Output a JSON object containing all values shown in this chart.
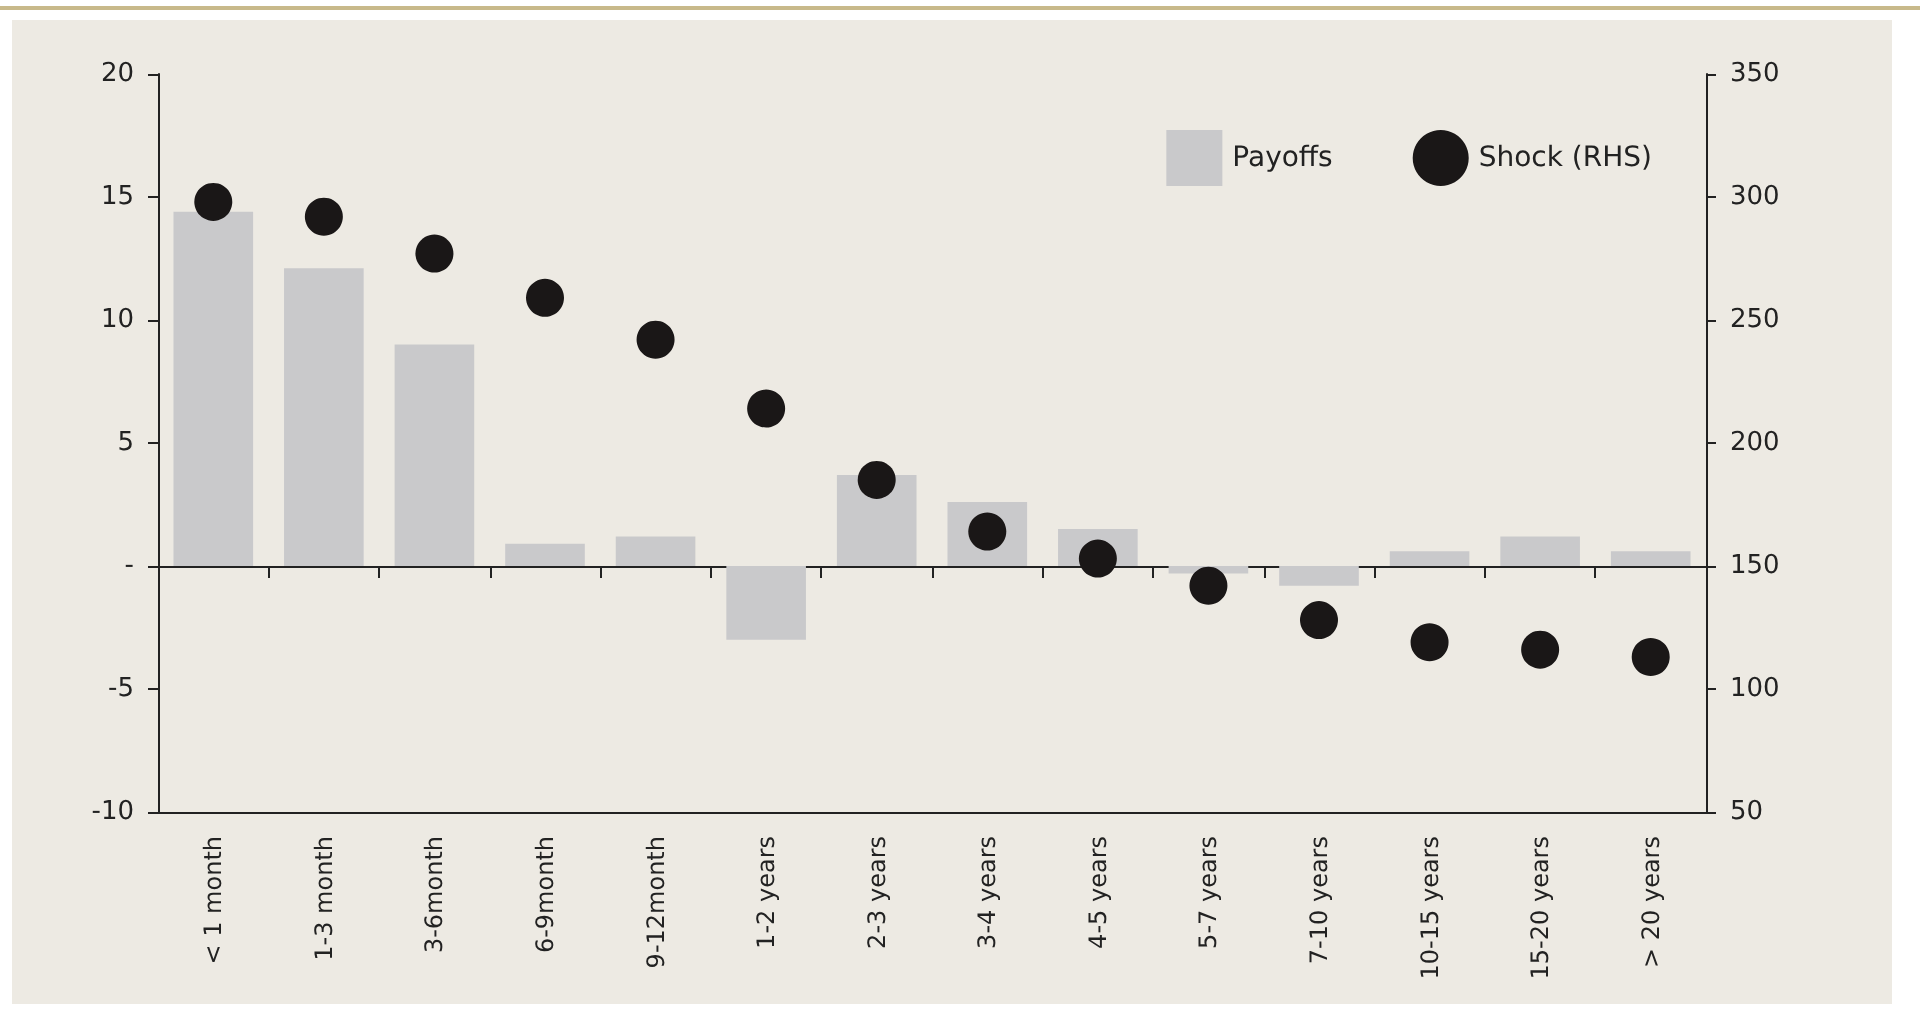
{
  "chart_data": {
    "type": "bar",
    "categories": [
      "< 1 month",
      "1-3 month",
      "3-6month",
      "6-9month",
      "9-12month",
      "1-2 years",
      "2-3 years",
      "3-4 years",
      "4-5 years",
      "5-7 years",
      "7-10 years",
      "10-15 years",
      "15-20 years",
      "> 20 years"
    ],
    "series": [
      {
        "name": "Payoffs",
        "color": "#c9c9cb",
        "values": [
          14.4,
          12.1,
          9.0,
          0.9,
          1.2,
          -3.0,
          3.7,
          2.6,
          1.5,
          -0.3,
          -0.8,
          0.6,
          1.2,
          0.6
        ]
      },
      {
        "name": "Shock (RHS)",
        "type": "scatter",
        "axis": "y2",
        "marker": "circle",
        "color": "#1a1717",
        "values": [
          298,
          292,
          277,
          259,
          242,
          214,
          185,
          164,
          153,
          142,
          128,
          119,
          116,
          113
        ]
      }
    ],
    "ylim": [
      -10,
      20
    ],
    "yticks": [
      -10,
      -5,
      {
        "value": 0,
        "label": "-"
      },
      5,
      10,
      15,
      20
    ],
    "y2lim": [
      50,
      350
    ],
    "y2ticks": [
      50,
      100,
      150,
      200,
      250,
      300,
      350
    ],
    "legend": "top right"
  }
}
